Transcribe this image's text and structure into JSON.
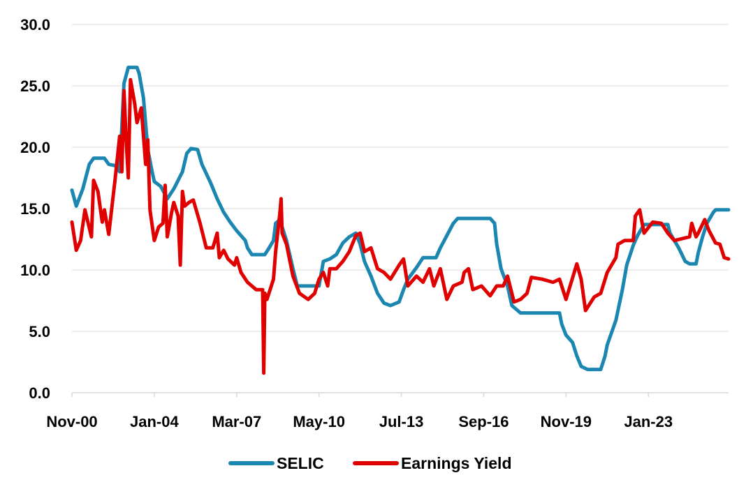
{
  "chart_data": {
    "type": "line",
    "title": "",
    "xlabel": "",
    "ylabel": "",
    "x_unit": "months since Nov-00",
    "xlim": [
      0,
      303
    ],
    "ylim": [
      0,
      30
    ],
    "y_ticks": [
      0,
      5,
      10,
      15,
      20,
      25,
      30
    ],
    "y_tick_labels": [
      "0.0",
      "5.0",
      "10.0",
      "15.0",
      "20.0",
      "25.0",
      "30.0"
    ],
    "x_ticks": [
      0,
      38,
      76,
      114,
      152,
      190,
      228,
      266
    ],
    "x_tick_labels": [
      "Nov-00",
      "Jan-04",
      "Mar-07",
      "May-10",
      "Jul-13",
      "Sep-16",
      "Nov-19",
      "Jan-23"
    ],
    "grid": true,
    "legend_position": "bottom",
    "series": [
      {
        "name": "SELIC",
        "color": "#1b86b0",
        "points": [
          [
            0,
            16.5
          ],
          [
            2,
            15.2
          ],
          [
            5,
            16.6
          ],
          [
            8,
            18.6
          ],
          [
            10,
            19.1
          ],
          [
            15,
            19.1
          ],
          [
            17,
            18.6
          ],
          [
            20,
            18.5
          ],
          [
            22,
            18
          ],
          [
            24,
            25.2
          ],
          [
            26,
            26.5
          ],
          [
            30,
            26.5
          ],
          [
            31,
            26
          ],
          [
            33,
            24
          ],
          [
            35,
            19.8
          ],
          [
            37,
            18
          ],
          [
            38,
            17.2
          ],
          [
            41,
            16.8
          ],
          [
            44,
            15.8
          ],
          [
            47,
            16.6
          ],
          [
            51,
            18
          ],
          [
            53,
            19.5
          ],
          [
            55,
            19.9
          ],
          [
            58,
            19.8
          ],
          [
            60,
            18.6
          ],
          [
            64,
            17.1
          ],
          [
            67,
            15.8
          ],
          [
            70,
            14.7
          ],
          [
            73,
            13.9
          ],
          [
            76,
            13.2
          ],
          [
            80,
            12.4
          ],
          [
            81,
            11.8
          ],
          [
            83,
            11.25
          ],
          [
            89,
            11.25
          ],
          [
            91,
            11.8
          ],
          [
            93,
            12.4
          ],
          [
            94,
            13.8
          ],
          [
            96,
            14.1
          ],
          [
            97,
            13.5
          ],
          [
            99,
            12.4
          ],
          [
            102,
            10.1
          ],
          [
            104,
            8.7
          ],
          [
            114,
            8.7
          ],
          [
            116,
            10.7
          ],
          [
            119,
            10.9
          ],
          [
            122,
            11.25
          ],
          [
            125,
            12.2
          ],
          [
            128,
            12.7
          ],
          [
            131,
            13
          ],
          [
            133,
            12.1
          ],
          [
            135,
            10.7
          ],
          [
            138,
            9.5
          ],
          [
            141,
            8.1
          ],
          [
            144,
            7.3
          ],
          [
            147,
            7.1
          ],
          [
            151,
            7.4
          ],
          [
            153,
            8.4
          ],
          [
            155,
            9.25
          ],
          [
            159,
            10.2
          ],
          [
            162,
            11
          ],
          [
            168,
            11
          ],
          [
            170,
            11.8
          ],
          [
            173,
            12.8
          ],
          [
            176,
            13.8
          ],
          [
            178,
            14.2
          ],
          [
            193,
            14.2
          ],
          [
            195,
            13.8
          ],
          [
            196,
            12.1
          ],
          [
            198,
            10.1
          ],
          [
            201,
            8.7
          ],
          [
            203,
            7.1
          ],
          [
            207,
            6.5
          ],
          [
            225,
            6.5
          ],
          [
            226,
            5.6
          ],
          [
            228,
            4.7
          ],
          [
            231,
            4.1
          ],
          [
            233,
            3
          ],
          [
            235,
            2.15
          ],
          [
            238,
            1.9
          ],
          [
            244,
            1.9
          ],
          [
            246,
            3
          ],
          [
            247,
            3.9
          ],
          [
            251,
            5.9
          ],
          [
            254,
            8.4
          ],
          [
            256,
            10.4
          ],
          [
            259,
            12
          ],
          [
            261,
            12.8
          ],
          [
            264,
            13.7
          ],
          [
            275,
            13.7
          ],
          [
            276,
            13
          ],
          [
            280,
            11.8
          ],
          [
            283,
            10.7
          ],
          [
            285,
            10.5
          ],
          [
            288,
            10.5
          ],
          [
            289,
            11.4
          ],
          [
            291,
            12.7
          ],
          [
            293,
            13.8
          ],
          [
            296,
            14.7
          ],
          [
            297,
            14.9
          ],
          [
            303,
            14.9
          ]
        ]
      },
      {
        "name": "Earnings Yield",
        "color": "#e00000",
        "points": [
          [
            0,
            13.9
          ],
          [
            2,
            11.6
          ],
          [
            4,
            12.4
          ],
          [
            6,
            14.9
          ],
          [
            9,
            12.7
          ],
          [
            10,
            17.3
          ],
          [
            12,
            16.4
          ],
          [
            14,
            13.9
          ],
          [
            15,
            14.9
          ],
          [
            17,
            12.9
          ],
          [
            20,
            17.5
          ],
          [
            22,
            20.9
          ],
          [
            23,
            18
          ],
          [
            24,
            24.6
          ],
          [
            25,
            20.6
          ],
          [
            26,
            17.5
          ],
          [
            27,
            25.5
          ],
          [
            29,
            23.5
          ],
          [
            30,
            22
          ],
          [
            32,
            23.2
          ],
          [
            34,
            18.6
          ],
          [
            35,
            20.6
          ],
          [
            36,
            14.9
          ],
          [
            38,
            12.4
          ],
          [
            40,
            13.5
          ],
          [
            42,
            13.8
          ],
          [
            43,
            16.9
          ],
          [
            44,
            12.7
          ],
          [
            46,
            14.7
          ],
          [
            47,
            15.5
          ],
          [
            49,
            14.4
          ],
          [
            50,
            10.4
          ],
          [
            51,
            16.4
          ],
          [
            52,
            15.2
          ],
          [
            54,
            15.5
          ],
          [
            56,
            15.7
          ],
          [
            59,
            13.9
          ],
          [
            60,
            13.2
          ],
          [
            62,
            11.8
          ],
          [
            65,
            11.8
          ],
          [
            67,
            13
          ],
          [
            68,
            11
          ],
          [
            70,
            11.6
          ],
          [
            72,
            10.9
          ],
          [
            75,
            10.4
          ],
          [
            76,
            11
          ],
          [
            78,
            9.8
          ],
          [
            81,
            9
          ],
          [
            85,
            8.4
          ],
          [
            88,
            8.4
          ],
          [
            88.5,
            1.6
          ],
          [
            89,
            8.1
          ],
          [
            90,
            7.6
          ],
          [
            93,
            9.25
          ],
          [
            94,
            11.5
          ],
          [
            96,
            14.7
          ],
          [
            96.5,
            15.8
          ],
          [
            97,
            13
          ],
          [
            99,
            12.1
          ],
          [
            102,
            9.5
          ],
          [
            105,
            8.1
          ],
          [
            109,
            7.6
          ],
          [
            112,
            8.1
          ],
          [
            114,
            9.25
          ],
          [
            116,
            9.8
          ],
          [
            118,
            8.7
          ],
          [
            119,
            10.1
          ],
          [
            122,
            10.1
          ],
          [
            125,
            10.7
          ],
          [
            128,
            11.5
          ],
          [
            131,
            12.8
          ],
          [
            133,
            13
          ],
          [
            135,
            11.5
          ],
          [
            138,
            11.8
          ],
          [
            141,
            10.1
          ],
          [
            144,
            9.8
          ],
          [
            147,
            9.25
          ],
          [
            151,
            10.4
          ],
          [
            153,
            10.9
          ],
          [
            155,
            8.7
          ],
          [
            159,
            9.5
          ],
          [
            162,
            9
          ],
          [
            165,
            10.1
          ],
          [
            167,
            8.7
          ],
          [
            170,
            10.1
          ],
          [
            173,
            7.6
          ],
          [
            176,
            8.7
          ],
          [
            180,
            9
          ],
          [
            181,
            9.8
          ],
          [
            183,
            10.1
          ],
          [
            185,
            8.4
          ],
          [
            189,
            8.7
          ],
          [
            193,
            7.9
          ],
          [
            196,
            8.7
          ],
          [
            199,
            8.7
          ],
          [
            201,
            9.5
          ],
          [
            204,
            7.4
          ],
          [
            207,
            7.6
          ],
          [
            210,
            8.1
          ],
          [
            212,
            9.4
          ],
          [
            217,
            9.25
          ],
          [
            222,
            9
          ],
          [
            225,
            9.25
          ],
          [
            228,
            7.6
          ],
          [
            233,
            10.5
          ],
          [
            235,
            9.25
          ],
          [
            237,
            6.7
          ],
          [
            241,
            7.8
          ],
          [
            244,
            8.1
          ],
          [
            247,
            9.8
          ],
          [
            251,
            11
          ],
          [
            252,
            12.1
          ],
          [
            255,
            12.4
          ],
          [
            259,
            12.4
          ],
          [
            260,
            14.4
          ],
          [
            262,
            14.9
          ],
          [
            264,
            13
          ],
          [
            268,
            13.9
          ],
          [
            272,
            13.8
          ],
          [
            275,
            13
          ],
          [
            278,
            12.4
          ],
          [
            285,
            12.7
          ],
          [
            286,
            13.8
          ],
          [
            288,
            12.7
          ],
          [
            289,
            13
          ],
          [
            292,
            14.1
          ],
          [
            294,
            13.2
          ],
          [
            297,
            12.2
          ],
          [
            299,
            12.1
          ],
          [
            301,
            11
          ],
          [
            303,
            10.9
          ]
        ]
      }
    ]
  }
}
